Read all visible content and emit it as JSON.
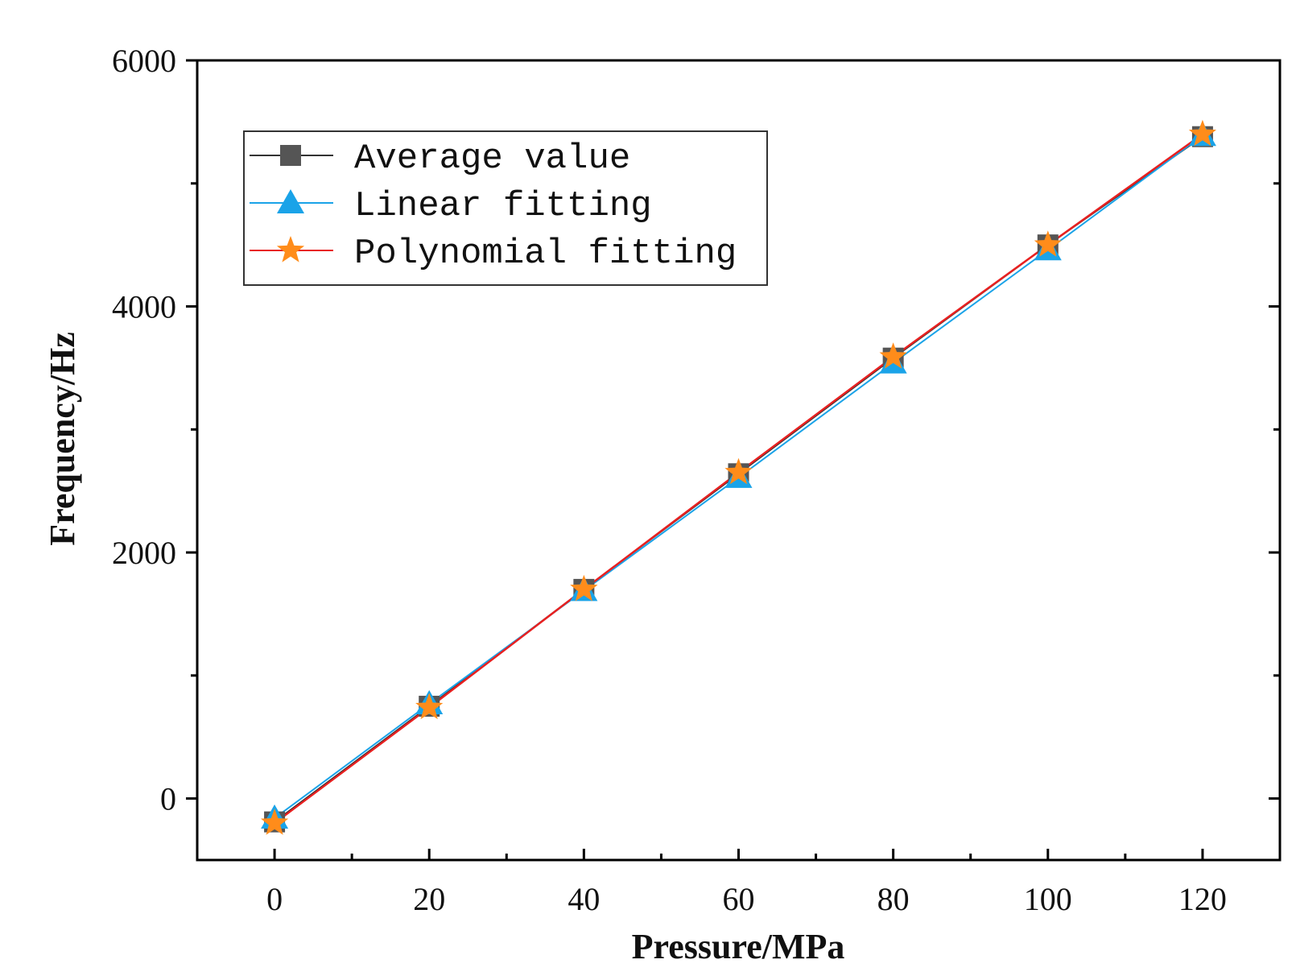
{
  "chart_data": {
    "type": "line",
    "title": "",
    "xlabel": "Pressure/MPa",
    "ylabel": "Frequency/Hz",
    "xlim": [
      -10,
      130
    ],
    "ylim": [
      -500,
      6000
    ],
    "x_ticks": [
      0,
      20,
      40,
      60,
      80,
      100,
      120
    ],
    "x_minor_ticks": [
      10,
      30,
      50,
      70,
      90,
      110
    ],
    "y_ticks": [
      0,
      2000,
      4000,
      6000
    ],
    "y_minor_ticks": [
      1000,
      3000,
      5000
    ],
    "x_tick_labels": [
      "0",
      "20",
      "40",
      "60",
      "80",
      "100",
      "120"
    ],
    "y_tick_labels": [
      "0",
      "2000",
      "4000",
      "6000"
    ],
    "grid": false,
    "legend_position": "top-left",
    "x": [
      0,
      20,
      40,
      60,
      80,
      100,
      120
    ],
    "series": [
      {
        "name": "Average value",
        "marker": "square",
        "color": "#555555",
        "line_color": "#333333",
        "values": [
          -190,
          750,
          1700,
          2640,
          3580,
          4500,
          5380
        ]
      },
      {
        "name": "Linear fitting",
        "marker": "triangle",
        "color": "#1aa3e8",
        "line_color": "#1aa3e8",
        "values": [
          -160,
          770,
          1690,
          2610,
          3540,
          4460,
          5390
        ]
      },
      {
        "name": "Polynomial fitting",
        "marker": "star",
        "color": "#ff8c1a",
        "line_color": "#e82020",
        "values": [
          -200,
          740,
          1700,
          2650,
          3590,
          4500,
          5400
        ]
      }
    ]
  }
}
